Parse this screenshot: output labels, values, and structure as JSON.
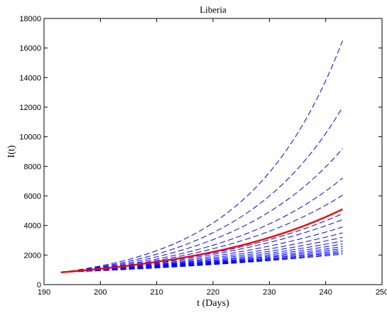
{
  "chart_data": {
    "type": "line",
    "title": "Liberia",
    "xlabel": "t (Days)",
    "ylabel": "I(t)",
    "xlim": [
      190,
      250
    ],
    "ylim": [
      0,
      18000
    ],
    "xticks": [
      190,
      200,
      210,
      220,
      230,
      240,
      250
    ],
    "yticks": [
      0,
      2000,
      4000,
      6000,
      8000,
      10000,
      12000,
      14000,
      16000,
      18000
    ],
    "grid": false,
    "x_start": 193,
    "x_end": 243,
    "start_value": 830,
    "colors": {
      "red": "#ff0000",
      "blue": "#0000ff"
    },
    "series": [
      {
        "style": "solid",
        "color": "red",
        "end_value": 5100
      },
      {
        "style": "dashed",
        "color": "blue",
        "end_value": 16500
      },
      {
        "style": "dashed",
        "color": "blue",
        "end_value": 12000
      },
      {
        "style": "dashed",
        "color": "blue",
        "end_value": 9200
      },
      {
        "style": "dashed",
        "color": "blue",
        "end_value": 7200
      },
      {
        "style": "dashed",
        "color": "blue",
        "end_value": 6050
      },
      {
        "style": "dashed",
        "color": "blue",
        "end_value": 4800
      },
      {
        "style": "dashed",
        "color": "blue",
        "end_value": 4400
      },
      {
        "style": "dashed",
        "color": "blue",
        "end_value": 3900
      },
      {
        "style": "dashed",
        "color": "blue",
        "end_value": 3500
      },
      {
        "style": "dashed",
        "color": "blue",
        "end_value": 3200
      },
      {
        "style": "dashed",
        "color": "blue",
        "end_value": 2950
      },
      {
        "style": "dashed",
        "color": "blue",
        "end_value": 2750
      },
      {
        "style": "dashed",
        "color": "blue",
        "end_value": 2580
      },
      {
        "style": "dashed",
        "color": "blue",
        "end_value": 2450
      },
      {
        "style": "dashed",
        "color": "blue",
        "end_value": 2330
      },
      {
        "style": "dashed",
        "color": "blue",
        "end_value": 2230
      },
      {
        "style": "dashed",
        "color": "blue",
        "end_value": 2140
      },
      {
        "style": "dashed",
        "color": "blue",
        "end_value": 2060
      }
    ]
  }
}
